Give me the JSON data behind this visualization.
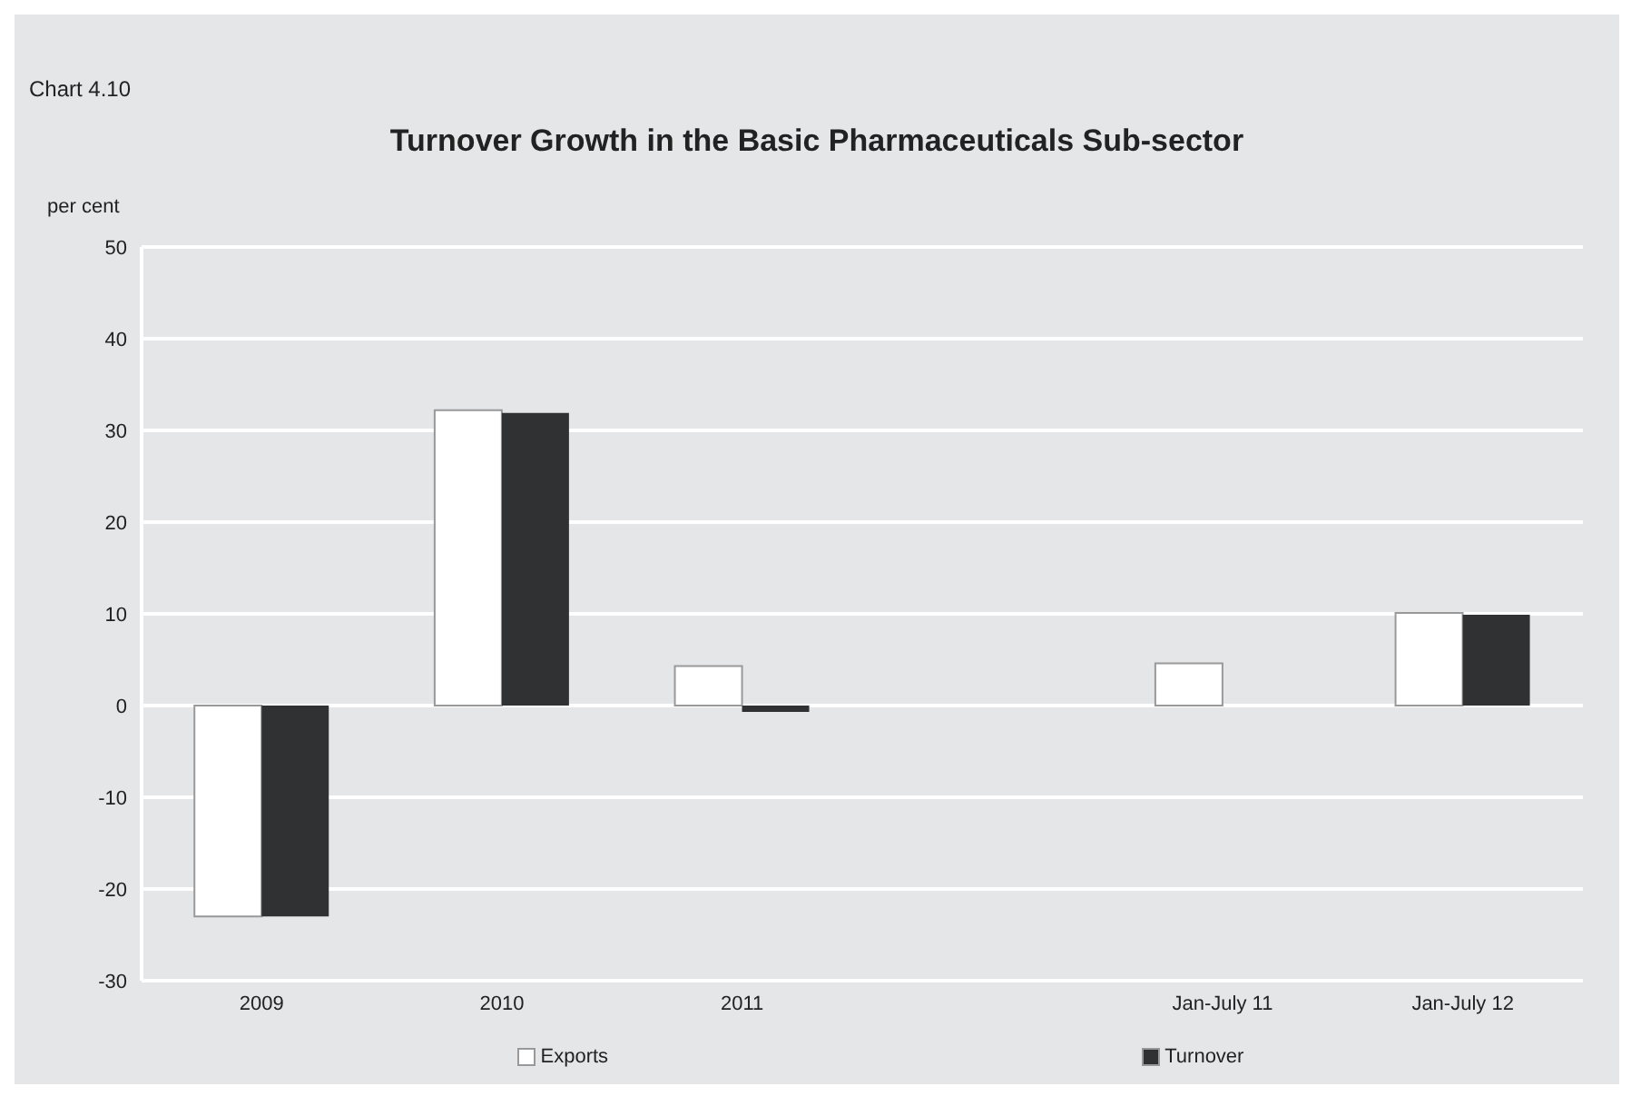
{
  "chart_data": {
    "type": "bar",
    "title": "Turnover Growth in the Basic Pharmaceuticals Sub-sector",
    "ylabel": "per cent",
    "annotations": [
      "Chart 4.10"
    ],
    "categories": [
      "2009",
      "2010",
      "2011",
      null,
      "Jan-July 11",
      "Jan-July 12"
    ],
    "series": [
      {
        "name": "Exports",
        "color": "#ffffff",
        "values": [
          -23,
          32.2,
          4.3,
          null,
          4.6,
          10.1
        ]
      },
      {
        "name": "Turnover",
        "color": "#303133",
        "values": [
          -23,
          31.9,
          -0.7,
          null,
          null,
          9.9
        ]
      }
    ],
    "ylim": [
      -30,
      50
    ],
    "yticks": [
      -30,
      -20,
      -10,
      0,
      10,
      20,
      30,
      40,
      50
    ],
    "grid": "y",
    "legend": "bottom"
  }
}
